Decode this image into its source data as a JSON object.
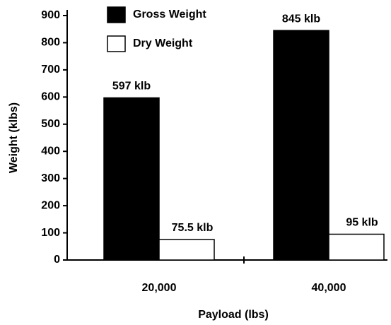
{
  "chart_data": {
    "type": "bar",
    "xlabel": "Payload (lbs)",
    "ylabel": "Weight (klbs)",
    "categories": [
      "20,000",
      "40,000"
    ],
    "series": [
      {
        "name": "Gross Weight",
        "color": "#000000",
        "values": [
          597,
          845
        ],
        "value_labels": [
          "597 klb",
          "845 klb"
        ]
      },
      {
        "name": "Dry Weight",
        "color": "#ffffff",
        "values": [
          75.5,
          95
        ],
        "value_labels": [
          "75.5 klb",
          "95 klb"
        ]
      }
    ],
    "ylim": [
      0,
      900
    ],
    "yticks": [
      0,
      100,
      200,
      300,
      400,
      500,
      600,
      700,
      800,
      900
    ],
    "grid": false,
    "legend": "top"
  }
}
